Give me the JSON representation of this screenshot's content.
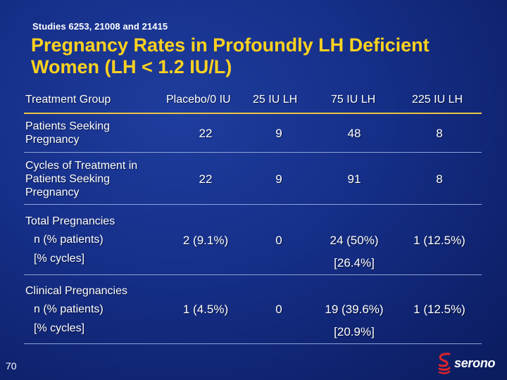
{
  "header": {
    "subtitle": "Studies 6253, 21008 and 21415",
    "title": "Pregnancy Rates in Profoundly LH Deficient Women (LH < 1.2 IU/L)"
  },
  "table": {
    "columns": [
      "Treatment Group",
      "Placebo/0 IU",
      "25 IU LH",
      "75 IU LH",
      "225 IU LH"
    ],
    "rows": {
      "seeking": {
        "label": [
          "Patients Seeking",
          "Pregnancy"
        ],
        "values": [
          "22",
          "9",
          "48",
          "8"
        ]
      },
      "cycles": {
        "label": [
          "Cycles of Treatment in",
          "Patients Seeking",
          "Pregnancy"
        ],
        "values": [
          "22",
          "9",
          "91",
          "8"
        ]
      },
      "total": {
        "label": "Total Pregnancies",
        "sub1": "n (% patients)",
        "sub2": "[% cycles]",
        "values": [
          "2 (9.1%)",
          "0",
          "24 (50%)",
          "1 (12.5%)"
        ],
        "cycles_value": "[26.4%]"
      },
      "clinical": {
        "label": "Clinical Pregnancies",
        "sub1": "n (% patients)",
        "sub2": "[% cycles]",
        "values": [
          "1 (4.5%)",
          "0",
          "19 (39.6%)",
          "1 (12.5%)"
        ],
        "cycles_value": "[20.9%]"
      }
    }
  },
  "footer": {
    "page_number": "70",
    "logo_text": "serono",
    "logo_icon": "serono-s-logo-icon"
  },
  "colors": {
    "title": "#ffd21f",
    "background": "#16308a",
    "header_rule": "#e8c640",
    "row_rule": "#8fa3d6",
    "logo_red": "#e0252a"
  }
}
